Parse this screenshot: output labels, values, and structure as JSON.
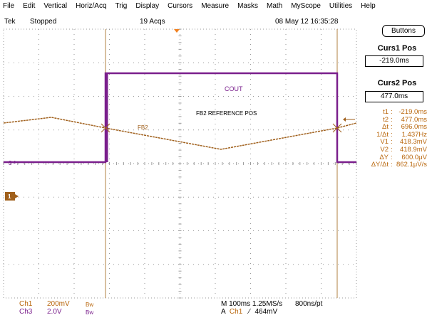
{
  "menu": [
    {
      "label": "File"
    },
    {
      "label": "Edit"
    },
    {
      "label": "Vertical"
    },
    {
      "label": "Horiz/Acq"
    },
    {
      "label": "Trig"
    },
    {
      "label": "Display"
    },
    {
      "label": "Cursors"
    },
    {
      "label": "Measure"
    },
    {
      "label": "Masks"
    },
    {
      "label": "Math"
    },
    {
      "label": "MyScope"
    },
    {
      "label": "Utilities"
    },
    {
      "label": "Help"
    }
  ],
  "status": {
    "brand": "Tek",
    "run_state": "Stopped",
    "acqs": "19 Acqs",
    "datetime": "08 May 12 16:35:28"
  },
  "side_panel": {
    "buttons_label": "Buttons",
    "curs1_title": "Curs1 Pos",
    "curs1_value": "-219.0ms",
    "curs2_title": "Curs2 Pos",
    "curs2_value": "477.0ms",
    "readouts": [
      {
        "label": "t1",
        "value": "-219.0ms"
      },
      {
        "label": "t2",
        "value": "477.0ms"
      },
      {
        "label": "Δt",
        "value": "696.0ms"
      },
      {
        "label": "1/Δt",
        "value": "1.437Hz"
      },
      {
        "label": "V1",
        "value": "418.3mV"
      },
      {
        "label": "V2",
        "value": "418.9mV"
      },
      {
        "label": "ΔY",
        "value": "600.0μV"
      },
      {
        "label": "ΔY/Δt",
        "value": "862.1μV/s"
      }
    ]
  },
  "waveform": {
    "cout_label": "COUT",
    "reference_label": "FB2 REFERENCE POS",
    "fb2_label": "FB2",
    "ch3_marker": "3",
    "ch1_marker": "1",
    "colors": {
      "ch1": "#a0601c",
      "ch3": "#7a1f8c",
      "grid": "#9a9a9a",
      "cursor": "#b08040",
      "readout": "#b8650a"
    }
  },
  "bottom": {
    "ch1_label": "Ch1",
    "ch1_scale": "200mV",
    "ch1_bw": "Bw",
    "ch3_label": "Ch3",
    "ch3_scale": "2.0V",
    "ch3_bw": "Bw",
    "horiz": "M 100ms 1.25MS/s",
    "rate": "800ns/pt",
    "trig_prefix": "A",
    "trig_ch": "Ch1",
    "trig_slope": "⁄",
    "trig_level": "464mV"
  }
}
